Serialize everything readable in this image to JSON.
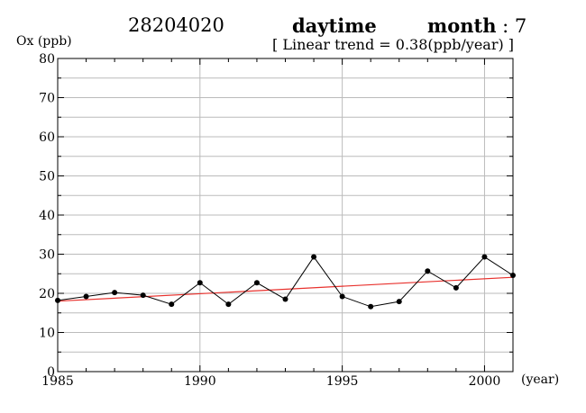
{
  "header": {
    "station": "28204020",
    "period": "daytime",
    "month_label": "month",
    "month_sep": " : ",
    "month_value": "7",
    "trend_text": "[ Linear trend = 0.38(ppb/year) ]"
  },
  "chart_data": {
    "type": "line",
    "title": "",
    "xlabel": "(year)",
    "ylabel": "Ox (ppb)",
    "xlim": [
      1985,
      2001
    ],
    "ylim": [
      0,
      80
    ],
    "xticks": [
      1985,
      1990,
      1995,
      2000
    ],
    "yticks": [
      0,
      10,
      20,
      30,
      40,
      50,
      60,
      70,
      80
    ],
    "grid": true,
    "colors": {
      "series": "#000000",
      "trend": "#e8312d",
      "grid": "#bbbbbb"
    },
    "series": [
      {
        "x": [
          1985,
          1986,
          1987,
          1988,
          1989,
          1990,
          1991,
          1992,
          1993,
          1994,
          1995,
          1996,
          1997,
          1998,
          1999,
          2000,
          2001
        ],
        "values": [
          18.2,
          19.2,
          20.2,
          19.5,
          17.2,
          22.7,
          17.2,
          22.7,
          18.5,
          29.3,
          19.2,
          16.6,
          17.9,
          25.7,
          21.4,
          29.3,
          24.6
        ]
      }
    ],
    "trend": {
      "slope": 0.38,
      "x": [
        1985,
        2001
      ],
      "y": [
        18.0,
        24.1
      ]
    }
  }
}
